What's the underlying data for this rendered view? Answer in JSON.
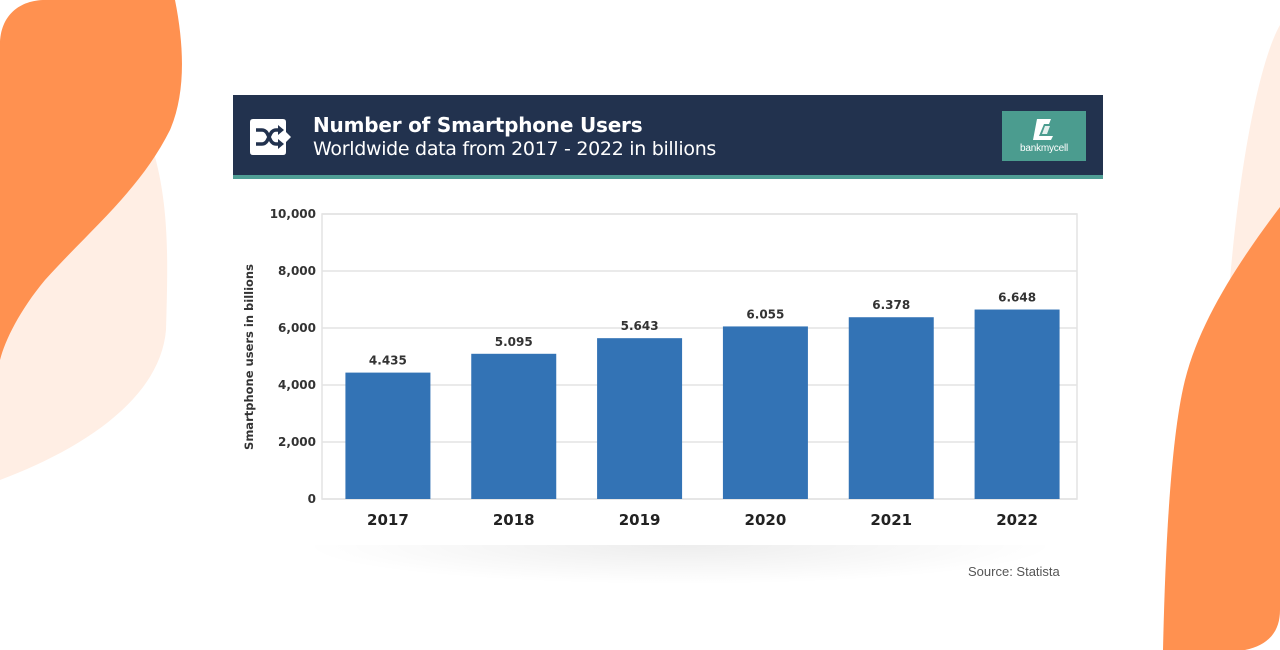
{
  "header": {
    "title": "Number of Smartphone Users",
    "subtitle": "Worldwide data from 2017 - 2022 in billions",
    "icon": "shuffle-icon",
    "logo_text": "bankmycell",
    "logo_icon": "bankmycell-logo-icon"
  },
  "colors": {
    "header_bg": "#22324e",
    "header_accent": "#4f9e95",
    "logo_bg": "#4b9c8f",
    "bar": "#3373b5",
    "background_orange": "#ff9150",
    "background_peach": "#ffeee4"
  },
  "source": "Source: Statista",
  "chart_data": {
    "type": "bar",
    "title": "Number of Smartphone Users",
    "subtitle": "Worldwide data from 2017 - 2022 in billions",
    "xlabel": "",
    "ylabel": "Smartphone users in billions",
    "categories": [
      "2017",
      "2018",
      "2019",
      "2020",
      "2021",
      "2022"
    ],
    "values": [
      4.435,
      5.095,
      5.643,
      6.055,
      6.378,
      6.648
    ],
    "value_labels": [
      "4.435",
      "5.095",
      "5.643",
      "6.055",
      "6.378",
      "6.648"
    ],
    "axis_values": [
      4435,
      5095,
      5643,
      6055,
      6378,
      6648
    ],
    "ylim": [
      0,
      10000
    ],
    "yticks": [
      0,
      2000,
      4000,
      6000,
      8000,
      10000
    ],
    "ytick_labels": [
      "0",
      "2,000",
      "4,000",
      "6,000",
      "8,000",
      "10,000"
    ],
    "grid": true,
    "legend": "none"
  }
}
